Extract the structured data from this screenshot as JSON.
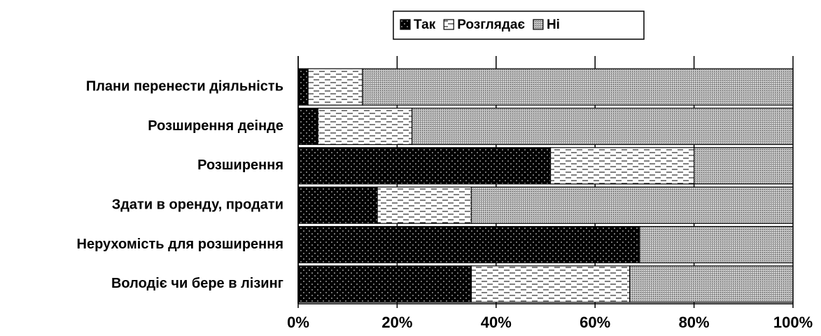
{
  "chart_data": {
    "type": "bar",
    "orientation": "horizontal",
    "stacked": true,
    "categories": [
      "Плани перенести діяльність",
      "Розширення деінде",
      "Розширення",
      "Здати в оренду, продати",
      "Нерухомість для розширення",
      "Володіє чи бере в лізинг"
    ],
    "series": [
      {
        "name": "Так",
        "color": "#000000",
        "values": [
          2,
          4,
          51,
          16,
          69,
          35
        ]
      },
      {
        "name": "Розглядає",
        "color": "#ffffff",
        "values": [
          11,
          19,
          29,
          19,
          0,
          32
        ]
      },
      {
        "name": "Ні",
        "color": "#a6a6a6",
        "values": [
          87,
          77,
          20,
          65,
          31,
          33
        ]
      }
    ],
    "xlim": [
      0,
      100
    ],
    "xticks": [
      {
        "value": 0,
        "label": "0%"
      },
      {
        "value": 20,
        "label": "20%"
      },
      {
        "value": 40,
        "label": "40%"
      },
      {
        "value": 60,
        "label": "60%"
      },
      {
        "value": 80,
        "label": "80%"
      },
      {
        "value": 100,
        "label": "100%"
      }
    ],
    "grid": true,
    "legend": "top"
  }
}
